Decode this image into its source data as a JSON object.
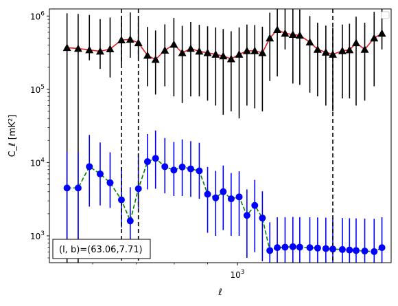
{
  "chart_data": {
    "type": "scatter",
    "title": "",
    "xlabel": "ℓ",
    "ylabel": "C_ℓ  [mK²]",
    "xscale": "log",
    "yscale": "log",
    "xlim": [
      515,
      1720
    ],
    "ylim": [
      430,
      1250000
    ],
    "grid": false,
    "legend": {
      "placement": "top-right",
      "entries": []
    },
    "x_ticks": [
      {
        "value": 1000,
        "base": "10",
        "exponent": "3"
      }
    ],
    "y_ticks": [
      {
        "value": 1000,
        "base": "10",
        "exponent": "3"
      },
      {
        "value": 10000,
        "base": "10",
        "exponent": "4"
      },
      {
        "value": 100000,
        "base": "10",
        "exponent": "5"
      },
      {
        "value": 1000000,
        "base": "10",
        "exponent": "6"
      }
    ],
    "vlines": [
      {
        "x": 664,
        "color": "#000000",
        "style": "dashed"
      },
      {
        "x": 705,
        "color": "#000000",
        "style": "dashed"
      },
      {
        "x": 1400,
        "color": "#000000",
        "style": "dashed"
      }
    ],
    "series": [
      {
        "marker": "triangle",
        "color": "#000000",
        "line_color": "#e41a1c",
        "line_style": "solid",
        "x": [
          548,
          570,
          593,
          616,
          638,
          664,
          685,
          705,
          728,
          749,
          774,
          799,
          823,
          848,
          874,
          900,
          926,
          951,
          978,
          1006,
          1034,
          1063,
          1092,
          1121,
          1151,
          1183,
          1216,
          1246,
          1291,
          1327,
          1366,
          1400,
          1448,
          1485,
          1520,
          1567,
          1620,
          1665
        ],
        "y": [
          370000,
          360000,
          345000,
          330000,
          355000,
          470000,
          480000,
          430000,
          290000,
          255000,
          340000,
          410000,
          315000,
          360000,
          330000,
          315000,
          300000,
          285000,
          260000,
          300000,
          335000,
          335000,
          315000,
          500000,
          650000,
          580000,
          560000,
          545000,
          440000,
          350000,
          320000,
          300000,
          335000,
          345000,
          430000,
          350000,
          500000,
          580000
        ],
        "yerr_low": [
          1000000,
          1000000,
          96000,
          140000,
          210000,
          250000,
          210000,
          160000,
          180000,
          170000,
          230000,
          330000,
          250000,
          280000,
          250000,
          245000,
          240000,
          240000,
          210000,
          260000,
          275000,
          280000,
          265000,
          370000,
          500000,
          230000,
          440000,
          430000,
          350000,
          270000,
          260000,
          250000,
          260000,
          270000,
          370000,
          280000,
          390000,
          230000
        ],
        "yerr_high": [
          720000,
          710000,
          690000,
          580000,
          600000,
          540000,
          640000,
          570000,
          420000,
          380000,
          430000,
          530000,
          420000,
          470000,
          430000,
          410000,
          400000,
          380000,
          360000,
          400000,
          430000,
          420000,
          400000,
          610000,
          800000,
          900000,
          700000,
          680000,
          560000,
          460000,
          420000,
          400000,
          430000,
          440000,
          550000,
          460000,
          640000,
          900000
        ]
      },
      {
        "marker": "circle",
        "color": "#0000ff",
        "line_color": "#008000",
        "line_style": "dashed",
        "x": [
          548,
          570,
          593,
          616,
          638,
          664,
          685,
          705,
          728,
          749,
          774,
          799,
          823,
          848,
          874,
          900,
          926,
          951,
          978,
          1006,
          1034,
          1063,
          1092,
          1121,
          1151,
          1183,
          1216,
          1246,
          1291,
          1327,
          1366,
          1400,
          1448,
          1485,
          1520,
          1567,
          1620,
          1665
        ],
        "y": [
          4500,
          4500,
          8800,
          7000,
          5300,
          3100,
          1600,
          4400,
          10300,
          11400,
          8800,
          7900,
          8700,
          8200,
          7700,
          3700,
          3300,
          4000,
          3200,
          3400,
          1900,
          2600,
          1750,
          630,
          690,
          700,
          710,
          700,
          690,
          680,
          670,
          660,
          650,
          640,
          630,
          620,
          610,
          690
        ],
        "yerr_low": [
          4000,
          4000,
          6300,
          4400,
          2900,
          1800,
          700,
          2000,
          6000,
          7000,
          5000,
          4400,
          5200,
          4800,
          4500,
          2600,
          2300,
          2800,
          2200,
          2400,
          1400,
          2000,
          1300,
          300,
          320,
          330,
          330,
          330,
          320,
          310,
          310,
          300,
          300,
          300,
          290,
          290,
          290,
          320
        ],
        "yerr_high": [
          9500,
          9500,
          15000,
          11800,
          8500,
          5600,
          3000,
          9000,
          14200,
          16000,
          12800,
          11200,
          12000,
          11400,
          10900,
          5000,
          4400,
          5100,
          4000,
          4200,
          2400,
          3200,
          2300,
          900,
          1100,
          1100,
          1100,
          1100,
          1100,
          1100,
          1100,
          1100,
          1100,
          1100,
          1100,
          1100,
          1100,
          1100
        ]
      }
    ],
    "annotation": {
      "text": "(l, b)=(63.06,7.71)",
      "placement": "bottom-left"
    }
  }
}
